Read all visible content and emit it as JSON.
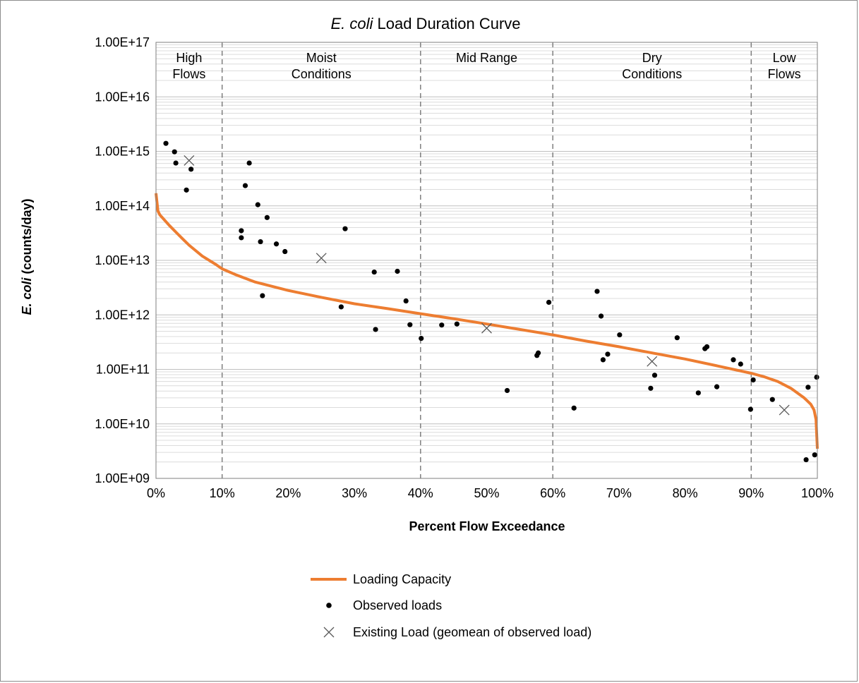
{
  "chart_data": {
    "type": "scatter",
    "title_italic": "E. coli",
    "title_rest": " Load Duration Curve",
    "xlabel": "Percent Flow Exceedance",
    "ylabel_italic": "E. coli",
    "ylabel_rest": " (counts/day)",
    "xlim": [
      0,
      100
    ],
    "ylim": [
      1000000000.0,
      1e+17
    ],
    "yscale": "log",
    "grid": true,
    "legend_position": "bottom",
    "x_ticks": [
      0,
      10,
      20,
      30,
      40,
      50,
      60,
      70,
      80,
      90,
      100
    ],
    "x_tick_labels": [
      "0%",
      "10%",
      "20%",
      "30%",
      "40%",
      "50%",
      "60%",
      "70%",
      "80%",
      "90%",
      "100%"
    ],
    "y_ticks": [
      1000000000.0,
      10000000000.0,
      100000000000.0,
      1000000000000.0,
      10000000000000.0,
      100000000000000.0,
      1000000000000000.0,
      1e+16,
      1e+17
    ],
    "y_tick_labels": [
      "1.00E+09",
      "1.00E+10",
      "1.00E+11",
      "1.00E+12",
      "1.00E+13",
      "1.00E+14",
      "1.00E+15",
      "1.00E+16",
      "1.00E+17"
    ],
    "zone_boundaries": [
      10,
      40,
      60,
      90
    ],
    "zones": [
      {
        "x_center": 5,
        "lines": [
          "High",
          "Flows"
        ]
      },
      {
        "x_center": 25,
        "lines": [
          "Moist",
          "Conditions"
        ]
      },
      {
        "x_center": 50,
        "lines": [
          "Mid Range"
        ]
      },
      {
        "x_center": 75,
        "lines": [
          "Dry",
          "Conditions"
        ]
      },
      {
        "x_center": 95,
        "lines": [
          "Low",
          "Flows"
        ]
      }
    ],
    "series": [
      {
        "name": "Loading Capacity",
        "kind": "line",
        "color": "#ed7d31",
        "x": [
          0,
          0.3,
          0.6,
          1,
          2,
          3,
          4,
          5,
          7,
          9,
          10,
          12,
          15,
          20,
          25,
          30,
          35,
          40,
          45,
          50,
          55,
          60,
          65,
          70,
          75,
          80,
          85,
          90,
          92,
          94,
          96,
          98,
          99,
          99.5,
          99.8,
          100
        ],
        "y": [
          170000000000000.0,
          80000000000000.0,
          68000000000000.0,
          60000000000000.0,
          44000000000000.0,
          33000000000000.0,
          25000000000000.0,
          19000000000000.0,
          12000000000000.0,
          8500000000000.0,
          7000000000000.0,
          5500000000000.0,
          4000000000000.0,
          2800000000000.0,
          2100000000000.0,
          1600000000000.0,
          1300000000000.0,
          1050000000000.0,
          850000000000.0,
          680000000000.0,
          540000000000.0,
          430000000000.0,
          330000000000.0,
          260000000000.0,
          200000000000.0,
          155000000000.0,
          115000000000.0,
          85000000000.0,
          73000000000.0,
          60000000000.0,
          45000000000.0,
          30000000000.0,
          23000000000.0,
          18000000000.0,
          12000000000.0,
          3500000000.0
        ]
      },
      {
        "name": "Observed loads",
        "kind": "points",
        "color": "#000000",
        "x": [
          1.5,
          2.8,
          3.0,
          4.6,
          5.3,
          12.9,
          12.9,
          13.5,
          14.1,
          15.4,
          15.8,
          16.1,
          16.8,
          18.2,
          19.5,
          28.0,
          28.6,
          33.0,
          33.2,
          36.5,
          37.8,
          38.4,
          40.1,
          43.2,
          45.5,
          53.1,
          57.6,
          57.8,
          59.4,
          63.2,
          66.7,
          67.3,
          67.6,
          68.3,
          70.1,
          74.8,
          75.4,
          78.8,
          82.0,
          83.0,
          83.3,
          84.8,
          87.3,
          88.4,
          89.9,
          90.3,
          93.2,
          98.3,
          98.6,
          99.6,
          99.9
        ],
        "y": [
          1400000000000000.0,
          980000000000000.0,
          610000000000000.0,
          195000000000000.0,
          470000000000000.0,
          35000000000000.0,
          26000000000000.0,
          235000000000000.0,
          610000000000000.0,
          105000000000000.0,
          22000000000000.0,
          2250000000000.0,
          61000000000000.0,
          20000000000000.0,
          14500000000000.0,
          1400000000000.0,
          38000000000000.0,
          6100000000000.0,
          540000000000.0,
          6300000000000.0,
          1800000000000.0,
          660000000000.0,
          370000000000.0,
          650000000000.0,
          680000000000.0,
          41000000000.0,
          180000000000.0,
          200000000000.0,
          1700000000000.0,
          19500000000.0,
          2700000000000.0,
          950000000000.0,
          150000000000.0,
          190000000000.0,
          430000000000.0,
          45000000000.0,
          78000000000.0,
          380000000000.0,
          37000000000.0,
          240000000000.0,
          260000000000.0,
          48000000000.0,
          150000000000.0,
          125000000000.0,
          18500000000.0,
          64000000000.0,
          28000000000.0,
          2200000000.0,
          47000000000.0,
          2700000000.0,
          72000000000.0
        ]
      },
      {
        "name": "Existing Load (geomean of observed load)",
        "kind": "cross",
        "color": "#595959",
        "x": [
          5,
          25,
          50,
          75,
          95
        ],
        "y": [
          680000000000000.0,
          11000000000000.0,
          570000000000.0,
          140000000000.0,
          18000000000.0
        ]
      }
    ]
  }
}
